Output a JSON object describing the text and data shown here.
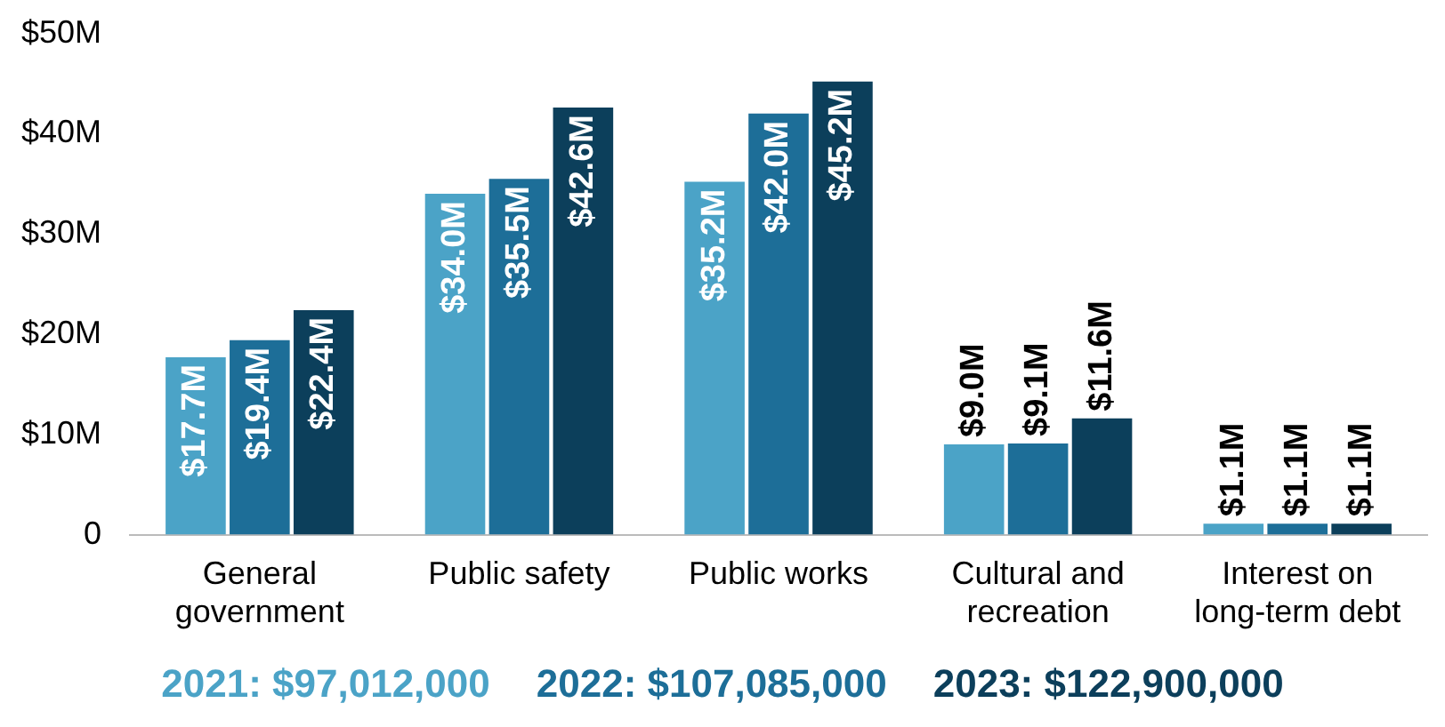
{
  "chart_data": {
    "type": "bar",
    "categories": [
      "General government",
      "Public safety",
      "Public works",
      "Cultural and recreation",
      "Interest on long-term debt"
    ],
    "series": [
      {
        "name": "2021: $97,012,000",
        "color": "#4ba3c7",
        "values": [
          17.7,
          34.0,
          35.2,
          9.0,
          1.1
        ]
      },
      {
        "name": "2022: $107,085,000",
        "color": "#1d6e98",
        "values": [
          19.4,
          35.5,
          42.0,
          9.1,
          1.1
        ]
      },
      {
        "name": "2023: $122,900,000",
        "color": "#0c3f5b",
        "values": [
          22.4,
          42.6,
          45.2,
          11.6,
          1.1
        ]
      }
    ],
    "value_labels": [
      [
        "$17.7M",
        "$34.0M",
        "$35.2M",
        "$9.0M",
        "$1.1M"
      ],
      [
        "$19.4M",
        "$35.5M",
        "$42.0M",
        "$9.1M",
        "$1.1M"
      ],
      [
        "$22.4M",
        "$42.6M",
        "$45.2M",
        "$11.6M",
        "$1.1M"
      ]
    ],
    "ylim": [
      0,
      50
    ],
    "yticks": [
      {
        "value": 0,
        "label": "0"
      },
      {
        "value": 10,
        "label": "$10M"
      },
      {
        "value": 20,
        "label": "$20M"
      },
      {
        "value": 30,
        "label": "$30M"
      },
      {
        "value": 40,
        "label": "$40M"
      },
      {
        "value": 50,
        "label": "$50M"
      }
    ],
    "grid": false,
    "legend": "bottom"
  }
}
